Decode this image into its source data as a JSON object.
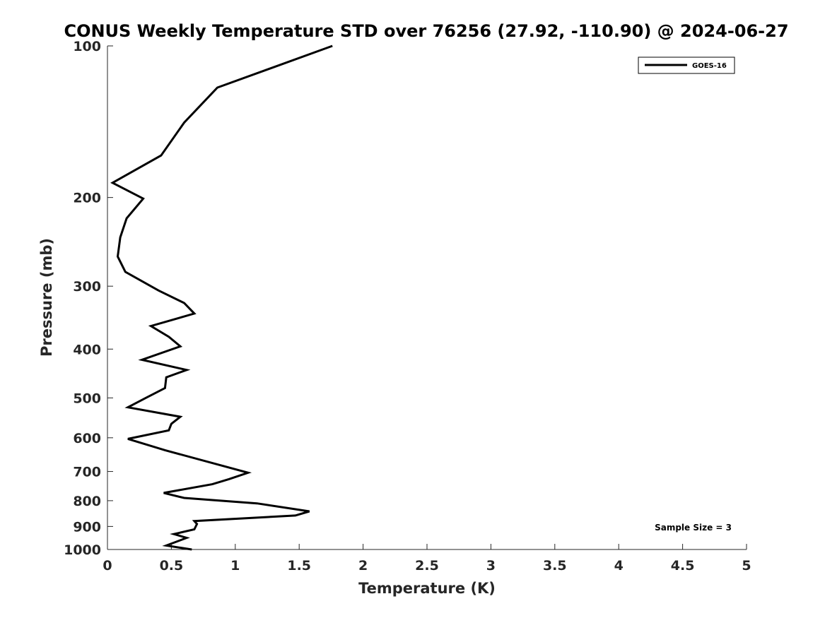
{
  "chart_data": {
    "type": "line",
    "title": "CONUS Weekly Temperature STD over 76256 (27.92, -110.90) @ 2024-06-27",
    "xlabel": "Temperature (K)",
    "ylabel": "Pressure (mb)",
    "xlim": [
      0,
      5
    ],
    "ylim": [
      100,
      1000
    ],
    "y_scale": "log",
    "y_reversed": true,
    "grid": false,
    "legend_position": "top-right",
    "x_ticks": [
      "0",
      "0.5",
      "1",
      "1.5",
      "2",
      "2.5",
      "3",
      "3.5",
      "4",
      "4.5",
      "5"
    ],
    "x_tick_values": [
      0,
      0.5,
      1,
      1.5,
      2,
      2.5,
      3,
      3.5,
      4,
      4.5,
      5
    ],
    "y_ticks": [
      "100",
      "200",
      "300",
      "400",
      "500",
      "600",
      "700",
      "800",
      "900",
      "1000"
    ],
    "y_tick_values": [
      100,
      200,
      300,
      400,
      500,
      600,
      700,
      800,
      900,
      1000
    ],
    "annotation": "Sample Size = 3",
    "series": [
      {
        "name": "GOES-16",
        "color": "#000000",
        "x": [
          1.76,
          0.86,
          0.6,
          0.42,
          0.04,
          0.28,
          0.15,
          0.1,
          0.08,
          0.14,
          0.4,
          0.6,
          0.68,
          0.34,
          0.48,
          0.57,
          0.27,
          0.62,
          0.46,
          0.45,
          0.3,
          0.16,
          0.57,
          0.5,
          0.48,
          0.16,
          0.45,
          1.1,
          0.95,
          0.82,
          0.44,
          0.6,
          1.17,
          1.58,
          1.47,
          0.68,
          0.7,
          0.68,
          0.52,
          0.62,
          0.46,
          0.66
        ],
        "y": [
          100,
          121,
          142,
          165,
          187,
          201,
          220,
          240,
          262,
          281,
          306,
          324,
          340,
          360,
          378,
          395,
          420,
          440,
          455,
          478,
          500,
          522,
          545,
          563,
          580,
          603,
          635,
          704,
          725,
          742,
          772,
          790,
          810,
          840,
          856,
          878,
          890,
          912,
          932,
          948,
          982,
          1000
        ]
      }
    ]
  }
}
